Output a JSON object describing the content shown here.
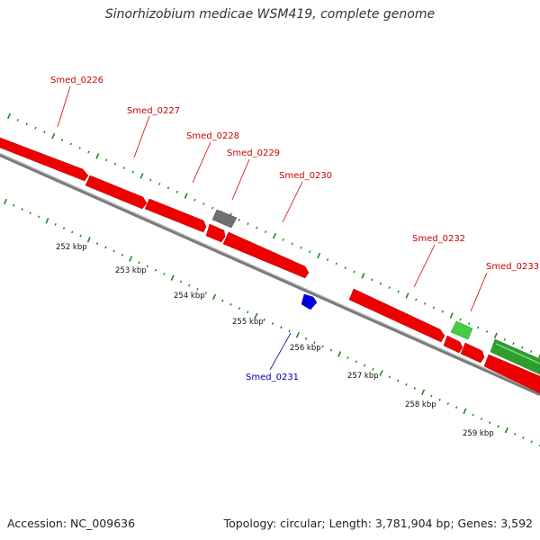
{
  "title": "Sinorhizobium medicae WSM419, complete genome",
  "footer": {
    "accession": "Accession: NC_009636",
    "stats": "Topology: circular; Length: 3,781,904 bp; Genes: 3,592"
  },
  "colors": {
    "forward_cds": "#ff0000",
    "reverse_cds": "#ff0000",
    "rna_gene": "#777777",
    "pseudo_gene": "#44cc44",
    "misc_feature": "#0000dd",
    "backbone": "#888888",
    "ticks": "#1a8a1a",
    "label_red": "#cc0000",
    "label_blue": "#0000aa"
  },
  "gene_labels": [
    {
      "id": "Smed_0226",
      "color": "label_red"
    },
    {
      "id": "Smed_0227",
      "color": "label_red"
    },
    {
      "id": "Smed_0228",
      "color": "label_red"
    },
    {
      "id": "Smed_0229",
      "color": "label_red"
    },
    {
      "id": "Smed_0230",
      "color": "label_red"
    },
    {
      "id": "Smed_0231",
      "color": "label_blue"
    },
    {
      "id": "Smed_0232",
      "color": "label_red"
    },
    {
      "id": "Smed_0233",
      "color": "label_red"
    }
  ],
  "kbp_labels": [
    "252 kbp",
    "253 kbp",
    "254 kbp",
    "255 kbp",
    "256 kbp",
    "257 kbp",
    "258 kbp",
    "259 kbp"
  ]
}
